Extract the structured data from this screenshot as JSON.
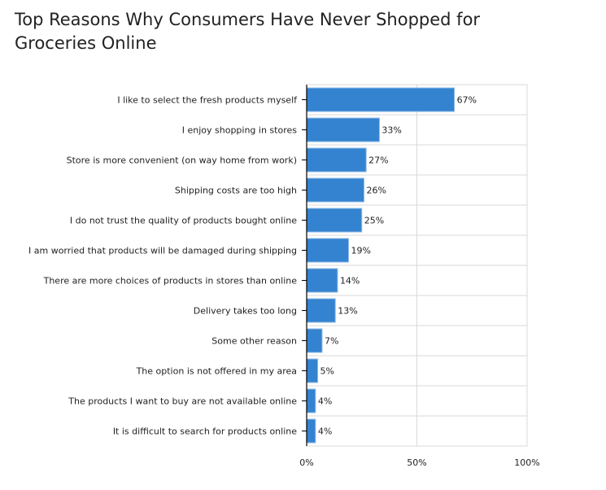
{
  "chart_data": {
    "type": "bar",
    "orientation": "horizontal",
    "title": "Top Reasons Why Consumers Have Never Shopped for Groceries Online",
    "categories": [
      "I like to select the fresh products myself",
      "I enjoy shopping in stores",
      "Store is more convenient (on way home from work)",
      "Shipping costs are too high",
      "I do not trust the quality of products bought online",
      "I am worried that products will be damaged during shipping",
      "There are more choices of products in stores than online",
      "Delivery takes too long",
      "Some other reason",
      "The option is not offered in my area",
      "The products I want to buy are not available online",
      "It is difficult to search for products online"
    ],
    "values": [
      67,
      33,
      27,
      26,
      25,
      19,
      14,
      13,
      7,
      5,
      4,
      4
    ],
    "value_labels": [
      "67%",
      "33%",
      "27%",
      "26%",
      "25%",
      "19%",
      "14%",
      "13%",
      "7%",
      "5%",
      "4%",
      "4%"
    ],
    "xlim": [
      0,
      100
    ],
    "x_ticks": [
      0,
      50,
      100
    ],
    "x_tick_labels": [
      "0%",
      "50%",
      "100%"
    ],
    "xlabel": "",
    "ylabel": "",
    "grid": true,
    "bar_color": "#3483d0",
    "bar_border_color": "#8fbbe6"
  }
}
